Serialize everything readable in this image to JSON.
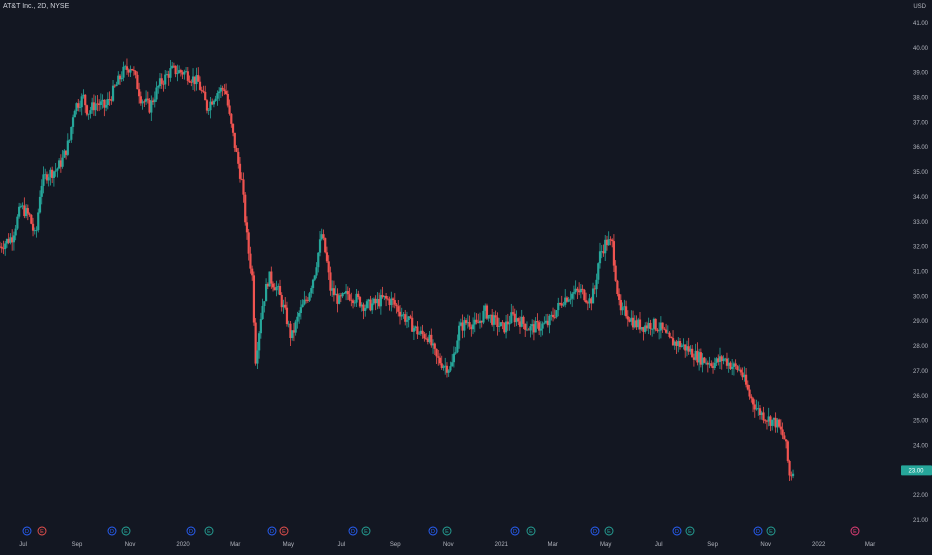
{
  "header": {
    "title": "AT&T Inc., 2D, NYSE",
    "currency": "USD"
  },
  "colors": {
    "background": "#131722",
    "up": "#26a69a",
    "down": "#ef5350",
    "axis_text": "#b2b5be",
    "dividend": "#2962ff",
    "earnings": "#26a69a",
    "future_earnings": "#ec407a",
    "last_price_label": "#26a69a"
  },
  "chart_data": {
    "type": "candlestick",
    "symbol": "AT&T Inc.",
    "interval": "2D",
    "exchange": "NYSE",
    "currency": "USD",
    "ylim": [
      20.6,
      41.6
    ],
    "y_ticks": [
      "41.00",
      "40.00",
      "39.00",
      "38.00",
      "37.00",
      "36.00",
      "35.00",
      "34.00",
      "33.00",
      "32.00",
      "31.00",
      "30.00",
      "29.00",
      "28.00",
      "27.00",
      "26.00",
      "25.00",
      "24.00",
      "23.00",
      "22.00",
      "21.00"
    ],
    "x_ticks": [
      "Jul",
      "Sep",
      "Nov",
      "2020",
      "Mar",
      "May",
      "Jul",
      "Sep",
      "Nov",
      "2021",
      "Mar",
      "May",
      "Jul",
      "Sep",
      "Nov",
      "2022",
      "Mar"
    ],
    "last_price": 23.0,
    "last_price_label": "23.00",
    "event_markers": [
      {
        "type": "D",
        "label": "D"
      },
      {
        "type": "E",
        "label": "E"
      },
      {
        "type": "D",
        "label": "D"
      },
      {
        "type": "E",
        "label": "E"
      },
      {
        "type": "D",
        "label": "D"
      },
      {
        "type": "E",
        "label": "E"
      },
      {
        "type": "D",
        "label": "D"
      },
      {
        "type": "E",
        "label": "E"
      },
      {
        "type": "D",
        "label": "D"
      },
      {
        "type": "E",
        "label": "E"
      },
      {
        "type": "D",
        "label": "D"
      },
      {
        "type": "E",
        "label": "E"
      },
      {
        "type": "D",
        "label": "D"
      },
      {
        "type": "E",
        "label": "E"
      },
      {
        "type": "D",
        "label": "D"
      },
      {
        "type": "E",
        "label": "E"
      },
      {
        "type": "D",
        "label": "D"
      },
      {
        "type": "E",
        "label": "E"
      },
      {
        "type": "D",
        "label": "D"
      },
      {
        "type": "E",
        "label": "E"
      },
      {
        "type": "F",
        "label": "E"
      }
    ],
    "close_path": [
      [
        "2019-06-01",
        32.0
      ],
      [
        "2019-06-15",
        32.4
      ],
      [
        "2019-06-25",
        33.6
      ],
      [
        "2019-07-05",
        33.2
      ],
      [
        "2019-07-12",
        32.3
      ],
      [
        "2019-07-18",
        34.5
      ],
      [
        "2019-07-25",
        34.9
      ],
      [
        "2019-08-05",
        35.1
      ],
      [
        "2019-08-12",
        35.5
      ],
      [
        "2019-08-20",
        36.3
      ],
      [
        "2019-08-25",
        37.6
      ],
      [
        "2019-09-05",
        38.0
      ],
      [
        "2019-09-10",
        37.4
      ],
      [
        "2019-09-20",
        37.8
      ],
      [
        "2019-09-30",
        37.6
      ],
      [
        "2019-10-10",
        38.3
      ],
      [
        "2019-10-20",
        39.0
      ],
      [
        "2019-10-30",
        39.3
      ],
      [
        "2019-11-10",
        38.0
      ],
      [
        "2019-11-20",
        37.6
      ],
      [
        "2019-12-01",
        38.5
      ],
      [
        "2019-12-15",
        39.1
      ],
      [
        "2019-12-31",
        39.0
      ],
      [
        "2020-01-15",
        38.6
      ],
      [
        "2020-01-25",
        37.6
      ],
      [
        "2020-02-05",
        38.2
      ],
      [
        "2020-02-15",
        38.4
      ],
      [
        "2020-02-20",
        37.2
      ],
      [
        "2020-02-28",
        35.7
      ],
      [
        "2020-03-05",
        34.6
      ],
      [
        "2020-03-12",
        32.0
      ],
      [
        "2020-03-17",
        30.8
      ],
      [
        "2020-03-21",
        27.5
      ],
      [
        "2020-03-28",
        29.5
      ],
      [
        "2020-04-05",
        30.8
      ],
      [
        "2020-04-15",
        30.3
      ],
      [
        "2020-04-25",
        29.2
      ],
      [
        "2020-05-01",
        28.3
      ],
      [
        "2020-05-10",
        29.3
      ],
      [
        "2020-05-20",
        30.0
      ],
      [
        "2020-05-28",
        31.0
      ],
      [
        "2020-06-05",
        32.5
      ],
      [
        "2020-06-10",
        31.6
      ],
      [
        "2020-06-15",
        30.3
      ],
      [
        "2020-06-25",
        29.8
      ],
      [
        "2020-07-05",
        30.1
      ],
      [
        "2020-07-15",
        29.9
      ],
      [
        "2020-07-25",
        29.6
      ],
      [
        "2020-08-05",
        29.7
      ],
      [
        "2020-08-15",
        29.9
      ],
      [
        "2020-08-25",
        29.8
      ],
      [
        "2020-09-05",
        29.3
      ],
      [
        "2020-09-15",
        28.9
      ],
      [
        "2020-09-25",
        28.5
      ],
      [
        "2020-10-05",
        28.4
      ],
      [
        "2020-10-15",
        27.5
      ],
      [
        "2020-10-25",
        27.2
      ],
      [
        "2020-11-01",
        27.1
      ],
      [
        "2020-11-10",
        28.7
      ],
      [
        "2020-11-20",
        29.0
      ],
      [
        "2020-11-30",
        28.8
      ],
      [
        "2020-12-10",
        29.4
      ],
      [
        "2020-12-20",
        29.0
      ],
      [
        "2020-12-31",
        28.7
      ],
      [
        "2021-01-10",
        29.2
      ],
      [
        "2021-01-20",
        29.0
      ],
      [
        "2021-01-30",
        28.7
      ],
      [
        "2021-02-10",
        28.8
      ],
      [
        "2021-02-20",
        28.9
      ],
      [
        "2021-03-01",
        29.4
      ],
      [
        "2021-03-10",
        29.9
      ],
      [
        "2021-03-20",
        30.1
      ],
      [
        "2021-03-30",
        30.2
      ],
      [
        "2021-04-10",
        29.8
      ],
      [
        "2021-04-15",
        30.3
      ],
      [
        "2021-04-20",
        31.6
      ],
      [
        "2021-04-28",
        32.2
      ],
      [
        "2021-05-05",
        32.1
      ],
      [
        "2021-05-14",
        29.3
      ],
      [
        "2021-05-20",
        29.4
      ],
      [
        "2021-05-31",
        28.9
      ],
      [
        "2021-06-10",
        28.8
      ],
      [
        "2021-06-20",
        28.9
      ],
      [
        "2021-06-30",
        28.7
      ],
      [
        "2021-07-10",
        28.2
      ],
      [
        "2021-07-20",
        28.1
      ],
      [
        "2021-07-30",
        27.9
      ],
      [
        "2021-08-10",
        27.6
      ],
      [
        "2021-08-20",
        27.4
      ],
      [
        "2021-08-30",
        27.3
      ],
      [
        "2021-09-10",
        27.5
      ],
      [
        "2021-09-20",
        27.2
      ],
      [
        "2021-09-30",
        27.0
      ],
      [
        "2021-10-10",
        26.0
      ],
      [
        "2021-10-20",
        25.4
      ],
      [
        "2021-10-30",
        25.1
      ],
      [
        "2021-11-10",
        24.9
      ],
      [
        "2021-11-20",
        24.2
      ],
      [
        "2021-11-25",
        22.8
      ],
      [
        "2021-11-30",
        23.0
      ]
    ]
  }
}
